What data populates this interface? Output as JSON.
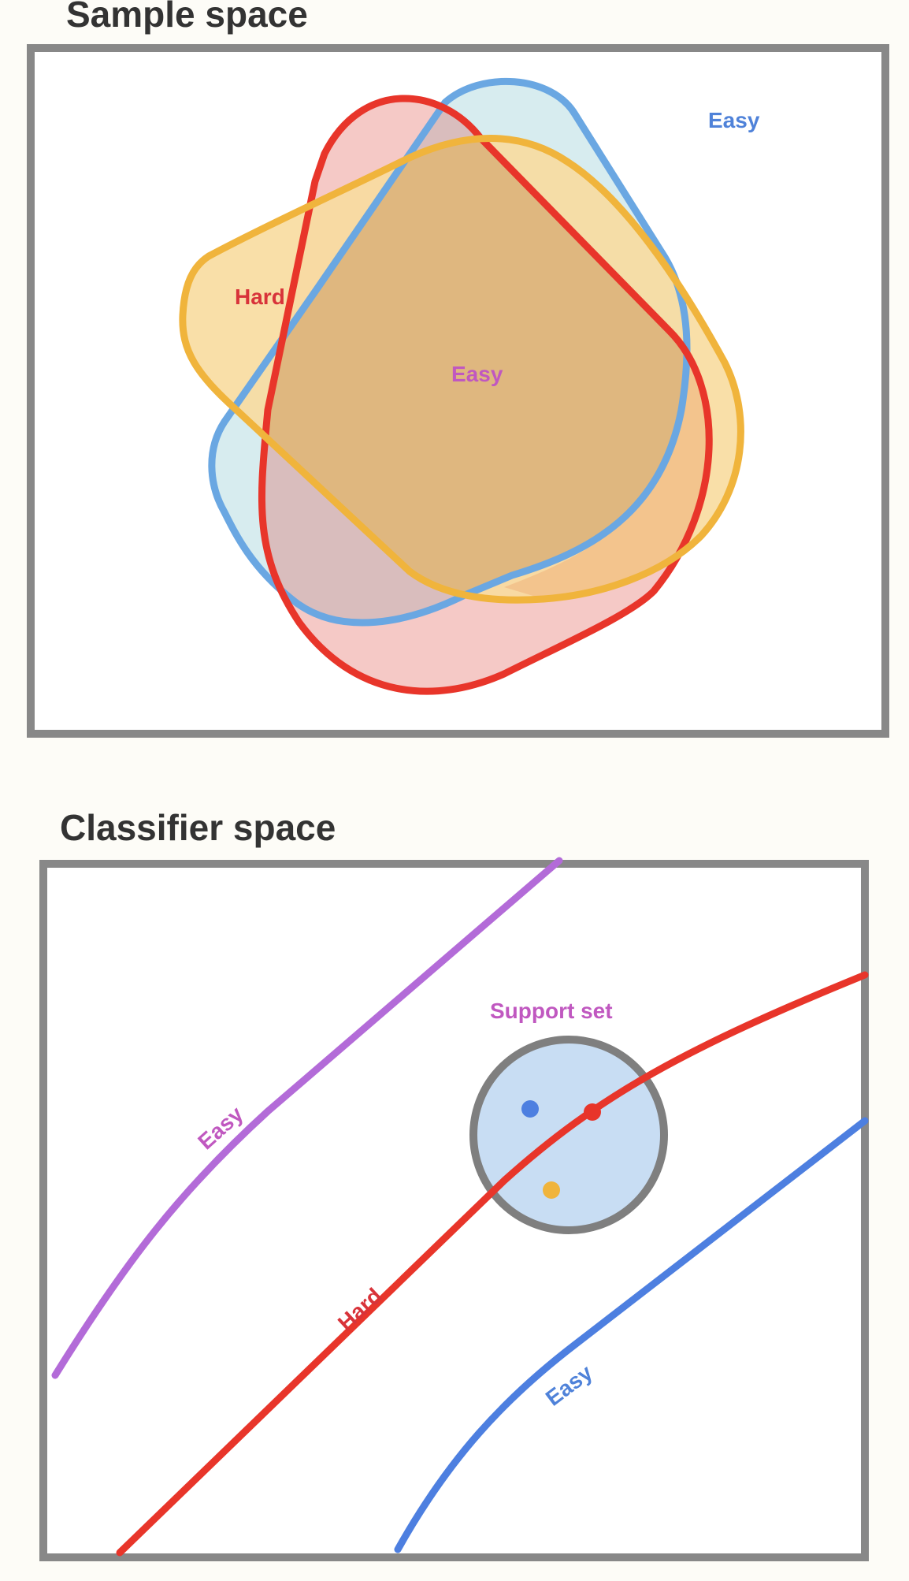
{
  "sample_space": {
    "title": "Sample space",
    "labels": {
      "blue_easy": "Easy",
      "red_hard": "Hard",
      "purple_easy": "Easy"
    }
  },
  "classifier_space": {
    "title": "Classifier space",
    "support_set": "Support set",
    "labels": {
      "purple_easy": "Easy",
      "red_hard": "Hard",
      "blue_easy": "Easy"
    }
  },
  "colors": {
    "frame": "#888888",
    "blue": "#6aa7e2",
    "blue_fill": "#d7ecef",
    "red": "#e8352a",
    "red_fill": "#f5c9c6",
    "yellow": "#f0b43c",
    "yellow_fill": "#f7da9e",
    "overlap_fill": "#ddb680",
    "purple": "#b36bd8",
    "blue_line": "#4d7fe0",
    "support_fill": "#c8ddf3",
    "text_blue": "#4f82d9",
    "text_red": "#d8333a",
    "text_purple": "#c058c0"
  }
}
